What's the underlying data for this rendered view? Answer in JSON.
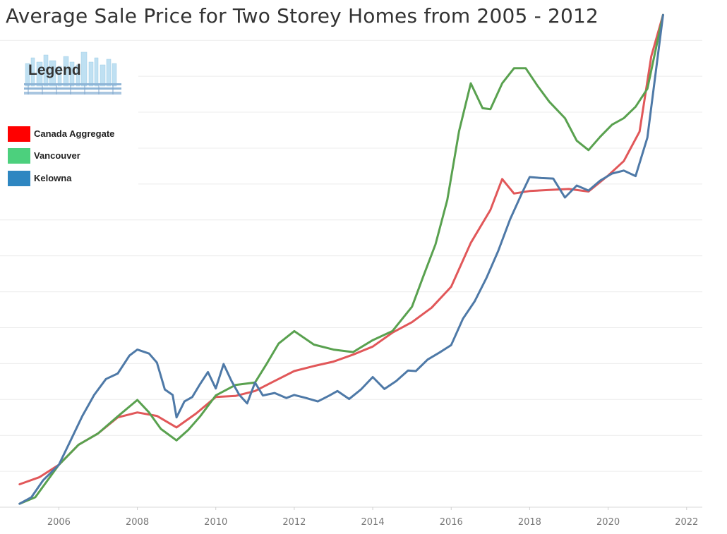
{
  "title": "Average Sale Price for Two Storey Homes from 2005 - 2012",
  "legend": {
    "title": "Legend",
    "items": [
      {
        "label": "Canada Aggregate",
        "color": "#ff0000"
      },
      {
        "label": "Vancouver",
        "color": "#4cd07d"
      },
      {
        "label": "Kelowna",
        "color": "#2e86c1"
      }
    ]
  },
  "colors": {
    "canada_line": "#e15759",
    "vancouver_line": "#59a14f",
    "kelowna_line": "#4e79a7"
  },
  "chart_data": {
    "type": "line",
    "title": "Average Sale Price for Two Storey Homes from 2005 - 2012",
    "xlabel": "",
    "ylabel": "",
    "x_ticks": [
      2006,
      2008,
      2010,
      2012,
      2014,
      2016,
      2018,
      2020,
      2022
    ],
    "xlim": [
      2004.5,
      2022.4
    ],
    "ylim": [
      0,
      100
    ],
    "y_tick_labels_visible": false,
    "grid": "horizontal",
    "legend_position": "top-left",
    "series": [
      {
        "name": "Canada Aggregate",
        "key": "canada",
        "x": [
          2005.0,
          2005.5,
          2006.0,
          2006.5,
          2007.0,
          2007.5,
          2008.0,
          2008.5,
          2009.0,
          2009.5,
          2010.0,
          2010.5,
          2011.0,
          2011.5,
          2012.0,
          2012.5,
          2013.0,
          2013.5,
          2014.0,
          2014.5,
          2015.0,
          2015.5,
          2016.0,
          2016.5,
          2017.0,
          2017.3,
          2017.6,
          2018.0,
          2018.5,
          2019.0,
          2019.5,
          2020.0,
          2020.4,
          2020.8,
          2021.1,
          2021.4
        ],
        "y": [
          4.6,
          6.0,
          8.5,
          12.5,
          14.8,
          18.0,
          19.0,
          18.3,
          16.0,
          18.8,
          22.1,
          22.3,
          23.3,
          25.3,
          27.3,
          28.3,
          29.2,
          30.6,
          32.2,
          35.0,
          37.1,
          40.0,
          44.2,
          53.0,
          59.6,
          65.8,
          62.9,
          63.4,
          63.6,
          63.8,
          63.3,
          66.5,
          69.4,
          75.3,
          90.4,
          98.7
        ]
      },
      {
        "name": "Vancouver",
        "key": "vancouver",
        "x": [
          2005.0,
          2005.4,
          2006.0,
          2006.5,
          2007.0,
          2007.5,
          2008.0,
          2008.3,
          2008.6,
          2009.0,
          2009.3,
          2009.6,
          2010.0,
          2010.5,
          2011.0,
          2011.3,
          2011.6,
          2012.0,
          2012.5,
          2013.0,
          2013.5,
          2014.0,
          2014.5,
          2015.0,
          2015.3,
          2015.6,
          2015.9,
          2016.2,
          2016.5,
          2016.8,
          2017.0,
          2017.3,
          2017.6,
          2017.9,
          2018.2,
          2018.5,
          2018.9,
          2019.2,
          2019.5,
          2019.8,
          2020.1,
          2020.4,
          2020.7,
          2021.0,
          2021.4
        ],
        "y": [
          0.7,
          2.0,
          8.5,
          12.5,
          14.8,
          18.2,
          21.5,
          19.0,
          15.7,
          13.4,
          15.5,
          18.2,
          22.4,
          24.5,
          25.0,
          28.8,
          32.8,
          35.3,
          32.6,
          31.6,
          31.1,
          33.5,
          35.3,
          40.2,
          46.5,
          52.7,
          61.6,
          75.4,
          85.0,
          80.0,
          79.8,
          85.0,
          88.0,
          88.0,
          84.5,
          81.3,
          78.0,
          73.5,
          71.6,
          74.3,
          76.7,
          78.0,
          80.3,
          83.9,
          98.7
        ]
      },
      {
        "name": "Kelowna",
        "key": "kelowna",
        "x": [
          2005.0,
          2005.3,
          2005.6,
          2006.0,
          2006.3,
          2006.6,
          2006.9,
          2007.2,
          2007.5,
          2007.8,
          2008.0,
          2008.3,
          2008.5,
          2008.7,
          2008.9,
          2009.0,
          2009.2,
          2009.4,
          2009.6,
          2009.8,
          2010.0,
          2010.2,
          2010.4,
          2010.6,
          2010.8,
          2011.0,
          2011.2,
          2011.5,
          2011.8,
          2012.0,
          2012.3,
          2012.6,
          2012.9,
          2013.1,
          2013.4,
          2013.7,
          2014.0,
          2014.3,
          2014.6,
          2014.9,
          2015.1,
          2015.4,
          2015.7,
          2016.0,
          2016.3,
          2016.6,
          2016.9,
          2017.2,
          2017.5,
          2017.8,
          2018.0,
          2018.3,
          2018.6,
          2018.9,
          2019.2,
          2019.5,
          2019.8,
          2020.1,
          2020.4,
          2020.7,
          2021.0,
          2021.4
        ],
        "y": [
          0.7,
          2.0,
          5.4,
          8.5,
          13.4,
          18.3,
          22.5,
          25.7,
          26.8,
          30.4,
          31.6,
          30.8,
          29.0,
          23.6,
          22.5,
          18.0,
          21.2,
          22.1,
          24.7,
          27.1,
          23.8,
          28.7,
          25.3,
          22.5,
          20.8,
          25.0,
          22.4,
          22.9,
          21.9,
          22.5,
          21.9,
          21.2,
          22.4,
          23.3,
          21.7,
          23.6,
          26.1,
          23.7,
          25.3,
          27.4,
          27.3,
          29.6,
          31.0,
          32.5,
          37.8,
          41.3,
          46.0,
          51.4,
          57.7,
          62.9,
          66.2,
          66.0,
          65.9,
          62.1,
          64.5,
          63.5,
          65.5,
          66.9,
          67.5,
          66.4,
          74.1,
          98.7
        ]
      }
    ]
  }
}
